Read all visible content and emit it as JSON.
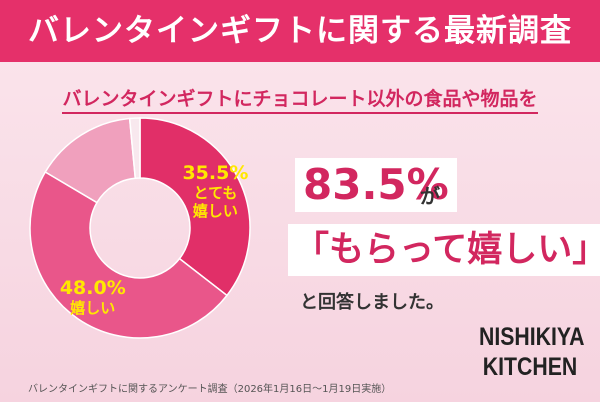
{
  "header": {
    "title": "バレンタインギフトに関する最新調査"
  },
  "chart_data": {
    "type": "donut",
    "subtitle": "バレンタインギフトにチョコレート以外の食品や物品を",
    "categories": [
      "とても嬉しい",
      "嬉しい",
      null,
      null
    ],
    "values": [
      35.5,
      48.0,
      15.0,
      1.5
    ],
    "value_labels": [
      "35.5%",
      "48.0%",
      null,
      null
    ],
    "colors": [
      "#e12f68",
      "#e9568a",
      "#f0a0bd",
      "#f8e8ee"
    ]
  },
  "callout": {
    "value": "83.5%",
    "particle": "が",
    "quote": "「もらって嬉しい」",
    "tail": "と回答しました。"
  },
  "logo": {
    "line1": "NISHIKIYA",
    "line2": "KITCHEN"
  },
  "footnote": "バレンタインギフトに関するアンケート調査（2026年1月16日〜1月19日実施）"
}
